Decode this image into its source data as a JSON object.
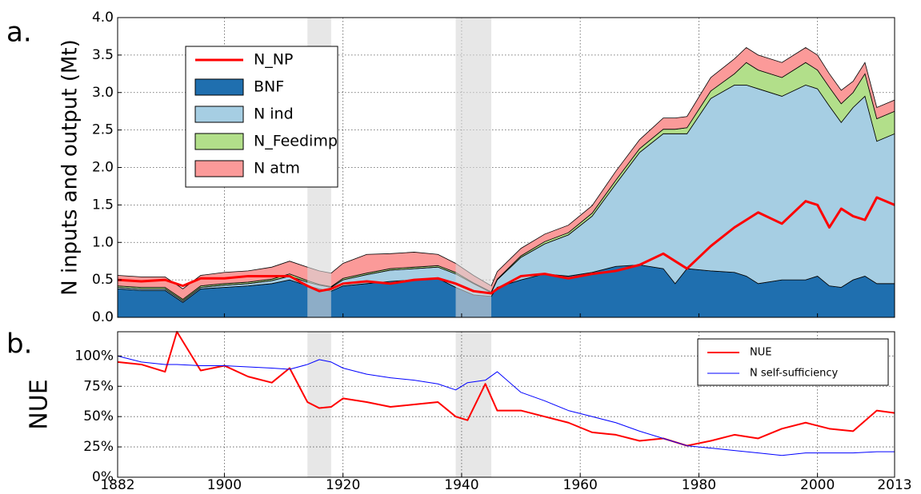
{
  "chart_data": [
    {
      "type": "stacked_area",
      "label": "a.",
      "ylabel": "N inputs and output (Mt)",
      "xlim": [
        1882,
        2013
      ],
      "xticks": [
        1882,
        1900,
        1920,
        1940,
        1960,
        1980,
        2000,
        2013
      ],
      "ylim": [
        0,
        4
      ],
      "yticks": [
        {
          "value": 0,
          "label": "0.0"
        },
        0.5,
        {
          "value": 1,
          "label": "1.0"
        },
        1.5,
        {
          "value": 2,
          "label": "2.0"
        },
        2.5,
        {
          "value": 3,
          "label": "3.0"
        },
        3.5,
        {
          "value": 4,
          "label": "4.0"
        }
      ],
      "grid": true,
      "legend": "upper left",
      "shaded_spans": [
        [
          1914,
          1918
        ],
        [
          1939,
          1945
        ]
      ],
      "x": [
        1882,
        1886,
        1890,
        1893,
        1896,
        1900,
        1904,
        1908,
        1911,
        1914,
        1916,
        1918,
        1920,
        1924,
        1928,
        1932,
        1936,
        1939,
        1942,
        1945,
        1946,
        1950,
        1954,
        1958,
        1962,
        1966,
        1970,
        1974,
        1976,
        1978,
        1982,
        1986,
        1988,
        1990,
        1994,
        1998,
        2000,
        2002,
        2004,
        2006,
        2008,
        2010,
        2013
      ],
      "series": [
        {
          "name": "N_NP",
          "type": "line",
          "color": "#ff0000",
          "values": [
            0.5,
            0.48,
            0.5,
            0.42,
            0.52,
            0.52,
            0.55,
            0.55,
            0.55,
            0.42,
            0.35,
            0.38,
            0.45,
            0.48,
            0.45,
            0.5,
            0.52,
            0.45,
            0.35,
            0.32,
            0.38,
            0.55,
            0.58,
            0.52,
            0.58,
            0.62,
            0.7,
            0.85,
            0.75,
            0.65,
            0.95,
            1.2,
            1.3,
            1.4,
            1.25,
            1.55,
            1.5,
            1.2,
            1.45,
            1.35,
            1.3,
            1.6,
            1.5
          ]
        },
        {
          "name": "BNF",
          "type": "area",
          "color": "#1f6faf",
          "values": [
            0.38,
            0.36,
            0.36,
            0.2,
            0.38,
            0.4,
            0.42,
            0.45,
            0.5,
            0.42,
            0.38,
            0.35,
            0.42,
            0.45,
            0.48,
            0.5,
            0.52,
            0.4,
            0.3,
            0.28,
            0.4,
            0.5,
            0.58,
            0.55,
            0.6,
            0.68,
            0.7,
            0.65,
            0.45,
            0.65,
            0.62,
            0.6,
            0.55,
            0.45,
            0.5,
            0.5,
            0.55,
            0.42,
            0.4,
            0.5,
            0.55,
            0.45,
            0.45
          ]
        },
        {
          "name": "N ind",
          "type": "area",
          "color": "#a6cee3",
          "values": [
            0.02,
            0.02,
            0.02,
            0.02,
            0.02,
            0.03,
            0.03,
            0.04,
            0.05,
            0.05,
            0.05,
            0.05,
            0.08,
            0.12,
            0.15,
            0.15,
            0.15,
            0.18,
            0.15,
            0.05,
            0.1,
            0.3,
            0.4,
            0.55,
            0.75,
            1.1,
            1.5,
            1.8,
            2.0,
            1.8,
            2.3,
            2.5,
            2.55,
            2.6,
            2.45,
            2.6,
            2.5,
            2.4,
            2.2,
            2.3,
            2.4,
            1.9,
            2.0
          ]
        },
        {
          "name": "N_Feedimp",
          "type": "area",
          "color": "#b2df8a",
          "values": [
            0.02,
            0.02,
            0.02,
            0.02,
            0.02,
            0.02,
            0.02,
            0.02,
            0.03,
            0.02,
            0.01,
            0.01,
            0.02,
            0.02,
            0.02,
            0.02,
            0.02,
            0.02,
            0.01,
            0.01,
            0.01,
            0.02,
            0.03,
            0.03,
            0.04,
            0.05,
            0.05,
            0.06,
            0.06,
            0.08,
            0.1,
            0.15,
            0.3,
            0.25,
            0.25,
            0.3,
            0.25,
            0.25,
            0.25,
            0.2,
            0.3,
            0.3,
            0.3
          ]
        },
        {
          "name": "N atm",
          "type": "area",
          "color": "#fb9a99",
          "values": [
            0.14,
            0.14,
            0.14,
            0.14,
            0.14,
            0.15,
            0.15,
            0.16,
            0.17,
            0.18,
            0.18,
            0.18,
            0.2,
            0.25,
            0.2,
            0.2,
            0.15,
            0.12,
            0.1,
            0.08,
            0.1,
            0.1,
            0.1,
            0.1,
            0.1,
            0.12,
            0.12,
            0.15,
            0.15,
            0.15,
            0.18,
            0.2,
            0.2,
            0.2,
            0.2,
            0.2,
            0.2,
            0.18,
            0.18,
            0.15,
            0.15,
            0.15,
            0.15
          ]
        }
      ]
    },
    {
      "type": "line",
      "label": "b.",
      "ylabel": "NUE",
      "xlim": [
        1882,
        2013
      ],
      "xticks": [
        1882,
        1900,
        1920,
        1940,
        1960,
        1980,
        2000,
        2013
      ],
      "ylim": [
        0,
        120
      ],
      "yticks": [
        {
          "value": 0,
          "label": "0%"
        },
        {
          "value": 25,
          "label": "25%"
        },
        {
          "value": 50,
          "label": "50%"
        },
        {
          "value": 75,
          "label": "75%"
        },
        {
          "value": 100,
          "label": "100%"
        }
      ],
      "grid": true,
      "legend": "upper right",
      "shaded_spans": [
        [
          1914,
          1918
        ],
        [
          1939,
          1945
        ]
      ],
      "x": [
        1882,
        1886,
        1890,
        1892,
        1896,
        1900,
        1904,
        1908,
        1911,
        1914,
        1916,
        1918,
        1920,
        1924,
        1928,
        1932,
        1936,
        1939,
        1941,
        1944,
        1946,
        1950,
        1954,
        1958,
        1962,
        1966,
        1970,
        1974,
        1978,
        1982,
        1986,
        1990,
        1994,
        1998,
        2002,
        2006,
        2010,
        2013
      ],
      "series": [
        {
          "name": "NUE",
          "type": "line",
          "color": "#ff0000",
          "values": [
            95,
            93,
            87,
            120,
            88,
            92,
            83,
            78,
            90,
            62,
            57,
            58,
            65,
            62,
            58,
            60,
            62,
            50,
            47,
            77,
            55,
            55,
            50,
            45,
            37,
            35,
            30,
            32,
            26,
            30,
            35,
            32,
            40,
            45,
            40,
            38,
            55,
            53
          ]
        },
        {
          "name": "N self-sufficiency",
          "type": "line",
          "color": "#0000ff",
          "values": [
            100,
            95,
            93,
            93,
            92,
            92,
            91,
            90,
            89,
            93,
            97,
            95,
            90,
            85,
            82,
            80,
            77,
            72,
            78,
            80,
            87,
            70,
            63,
            55,
            50,
            45,
            38,
            32,
            26,
            24,
            22,
            20,
            18,
            20,
            20,
            20,
            21,
            21
          ]
        }
      ]
    }
  ]
}
